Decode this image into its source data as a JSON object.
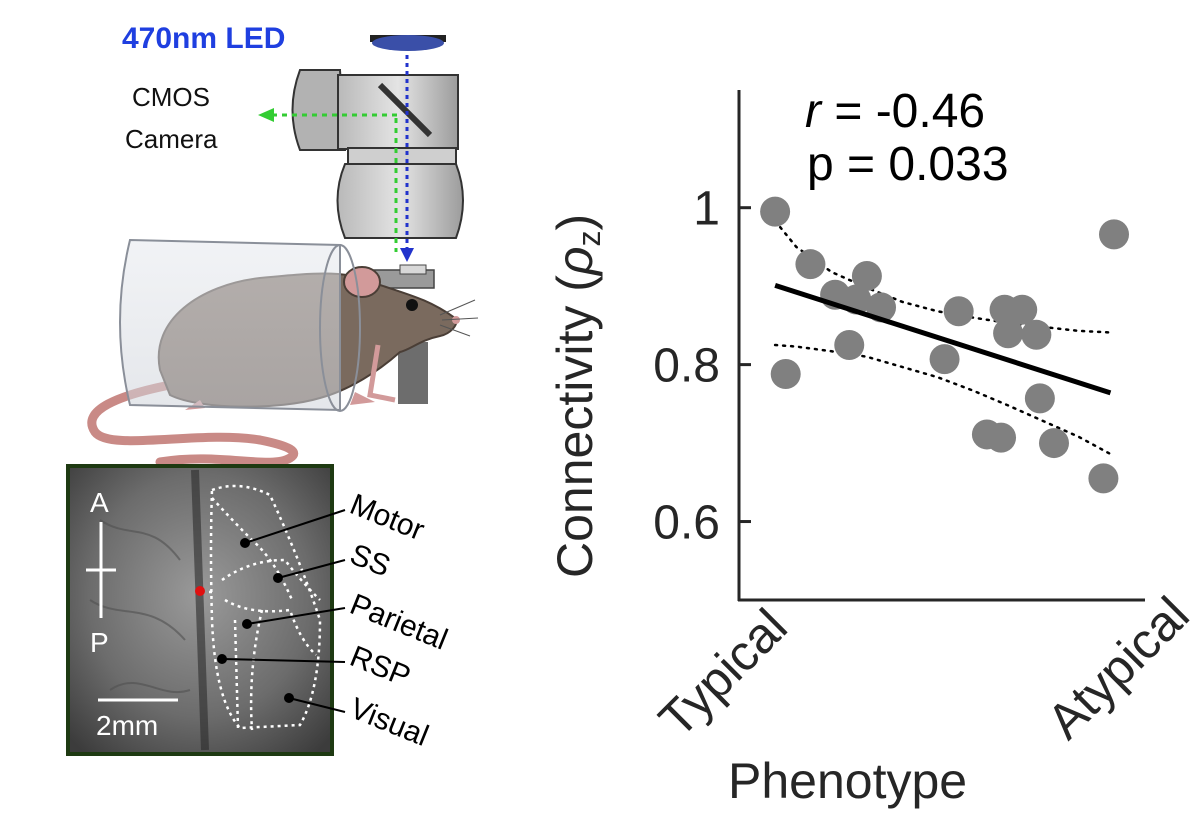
{
  "setup": {
    "led_label": "470nm LED",
    "camera_label_line1": "CMOS",
    "camera_label_line2": "Camera"
  },
  "brain_image": {
    "orientation_anterior": "A",
    "orientation_posterior": "P",
    "scale_bar_label": "2mm",
    "regions": [
      "Motor",
      "SS",
      "Parietal",
      "RSP",
      "Visual"
    ]
  },
  "chart_data": {
    "type": "scatter",
    "title": "",
    "xlabel": "Phenotype",
    "ylabel": "Connectivity (ρz)",
    "ylabel_text": "Connectivity (",
    "ylabel_symbol": "ρ",
    "ylabel_sub": "z",
    "ylabel_close": ")",
    "x_tick_labels": [
      "Typical",
      "Atypical"
    ],
    "xlim": [
      0,
      1
    ],
    "ylim": [
      0.5,
      1.15
    ],
    "y_ticks": [
      0.6,
      0.8,
      1
    ],
    "y_tick_labels": [
      "0.6",
      "0.8",
      "1"
    ],
    "stats": {
      "r_symbol": "r",
      "r_value": " = -0.46",
      "p_text": "p = 0.033"
    },
    "points": [
      {
        "x": 0.04,
        "y": 0.995
      },
      {
        "x": 0.07,
        "y": 0.788
      },
      {
        "x": 0.14,
        "y": 0.928
      },
      {
        "x": 0.21,
        "y": 0.889
      },
      {
        "x": 0.25,
        "y": 0.825
      },
      {
        "x": 0.27,
        "y": 0.883
      },
      {
        "x": 0.3,
        "y": 0.913
      },
      {
        "x": 0.34,
        "y": 0.873
      },
      {
        "x": 0.52,
        "y": 0.807
      },
      {
        "x": 0.56,
        "y": 0.868
      },
      {
        "x": 0.64,
        "y": 0.711
      },
      {
        "x": 0.68,
        "y": 0.707
      },
      {
        "x": 0.69,
        "y": 0.87
      },
      {
        "x": 0.7,
        "y": 0.84
      },
      {
        "x": 0.74,
        "y": 0.87
      },
      {
        "x": 0.78,
        "y": 0.838
      },
      {
        "x": 0.79,
        "y": 0.757
      },
      {
        "x": 0.83,
        "y": 0.7
      },
      {
        "x": 0.97,
        "y": 0.655
      },
      {
        "x": 1.0,
        "y": 0.966
      }
    ],
    "fit_line": {
      "x": [
        0.04,
        0.99
      ],
      "y": [
        0.901,
        0.764
      ]
    },
    "ci_upper": {
      "x": [
        0.04,
        0.1,
        0.2,
        0.3,
        0.4,
        0.5,
        0.6,
        0.7,
        0.8,
        0.9,
        0.99
      ],
      "y": [
        0.983,
        0.95,
        0.918,
        0.898,
        0.88,
        0.868,
        0.86,
        0.853,
        0.848,
        0.843,
        0.841
      ]
    },
    "ci_lower": {
      "x": [
        0.04,
        0.1,
        0.2,
        0.3,
        0.4,
        0.5,
        0.6,
        0.7,
        0.8,
        0.9,
        0.99
      ],
      "y": [
        0.825,
        0.823,
        0.817,
        0.81,
        0.797,
        0.784,
        0.767,
        0.748,
        0.728,
        0.708,
        0.686
      ]
    },
    "colors": {
      "point": "#808080",
      "line": "#000000",
      "axis": "#262626"
    }
  },
  "colors": {
    "led_text": "#1f3fe0",
    "led_beam": "#2233cc",
    "green_beam": "#33cc33",
    "mouse_body": "#7a6a5e",
    "mouse_tail": "#c98a86",
    "brain_frame": "#1e3a12",
    "roi_dot": "#e01010"
  }
}
